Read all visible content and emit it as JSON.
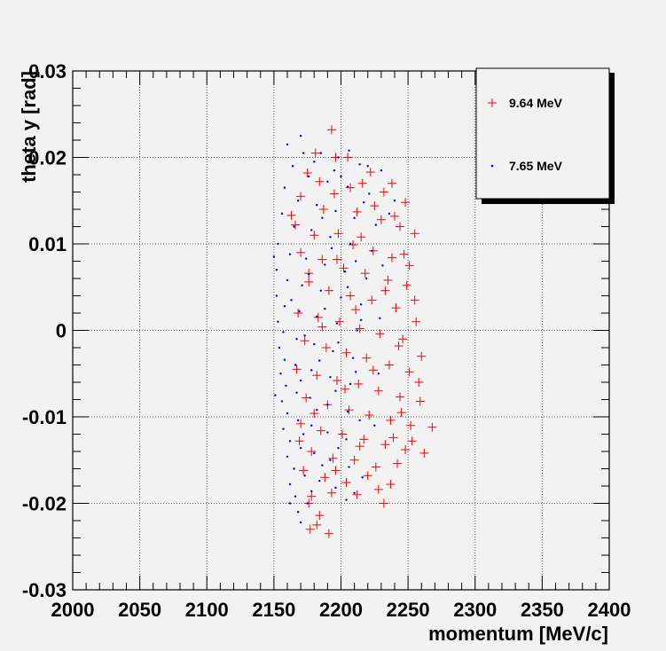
{
  "chart_data": {
    "type": "scatter",
    "title": "",
    "xlabel": "momentum [MeV/c]",
    "ylabel": "theta y [rad]",
    "xlim": [
      2000,
      2400
    ],
    "ylim": [
      -0.03,
      0.03
    ],
    "x_ticks": [
      "2000",
      "2050",
      "2100",
      "2150",
      "2200",
      "2250",
      "2300",
      "2350",
      "2400"
    ],
    "y_ticks": [
      "-0.03",
      "-0.02",
      "-0.01",
      "0",
      "0.01",
      "0.02",
      "0.03"
    ],
    "grid": true,
    "legend_position": "top-right",
    "series": [
      {
        "name": "9.64 MeV",
        "marker": "plus",
        "color": "#ff0000",
        "points": [
          [
            2193,
            0.0232
          ],
          [
            2181,
            0.0205
          ],
          [
            2205,
            0.02
          ],
          [
            2222,
            0.0183
          ],
          [
            2238,
            0.017
          ],
          [
            2175,
            0.0182
          ],
          [
            2216,
            0.017
          ],
          [
            2232,
            0.016
          ],
          [
            2248,
            0.0148
          ],
          [
            2170,
            0.0155
          ],
          [
            2195,
            0.0158
          ],
          [
            2187,
            0.014
          ],
          [
            2212,
            0.0137
          ],
          [
            2230,
            0.0128
          ],
          [
            2244,
            0.012
          ],
          [
            2255,
            0.0112
          ],
          [
            2166,
            0.0122
          ],
          [
            2180,
            0.011
          ],
          [
            2198,
            0.0112
          ],
          [
            2209,
            0.0099
          ],
          [
            2224,
            0.0092
          ],
          [
            2238,
            0.0084
          ],
          [
            2251,
            0.0075
          ],
          [
            2170,
            0.009
          ],
          [
            2186,
            0.0082
          ],
          [
            2202,
            0.0072
          ],
          [
            2218,
            0.0066
          ],
          [
            2235,
            0.0058
          ],
          [
            2249,
            0.0052
          ],
          [
            2176,
            0.0056
          ],
          [
            2191,
            0.0046
          ],
          [
            2207,
            0.004
          ],
          [
            2223,
            0.0035
          ],
          [
            2241,
            0.0026
          ],
          [
            2255,
            0.0035
          ],
          [
            2168,
            0.002
          ],
          [
            2183,
            0.0015
          ],
          [
            2199,
            0.001
          ],
          [
            2214,
            0.0002
          ],
          [
            2229,
            -0.0004
          ],
          [
            2246,
            -0.001
          ],
          [
            2173,
            -0.0012
          ],
          [
            2189,
            -0.002
          ],
          [
            2204,
            -0.0026
          ],
          [
            2219,
            -0.0032
          ],
          [
            2236,
            -0.004
          ],
          [
            2251,
            -0.0048
          ],
          [
            2167,
            -0.0045
          ],
          [
            2182,
            -0.0052
          ],
          [
            2197,
            -0.0058
          ],
          [
            2213,
            -0.0062
          ],
          [
            2228,
            -0.007
          ],
          [
            2244,
            -0.0077
          ],
          [
            2259,
            -0.0082
          ],
          [
            2174,
            -0.0078
          ],
          [
            2190,
            -0.0086
          ],
          [
            2206,
            -0.0092
          ],
          [
            2221,
            -0.0098
          ],
          [
            2237,
            -0.0104
          ],
          [
            2252,
            -0.011
          ],
          [
            2170,
            -0.0108
          ],
          [
            2185,
            -0.0116
          ],
          [
            2201,
            -0.012
          ],
          [
            2217,
            -0.0126
          ],
          [
            2233,
            -0.0132
          ],
          [
            2248,
            -0.0138
          ],
          [
            2262,
            -0.0142
          ],
          [
            2268,
            -0.0112
          ],
          [
            2178,
            -0.014
          ],
          [
            2194,
            -0.0148
          ],
          [
            2210,
            -0.015
          ],
          [
            2226,
            -0.0158
          ],
          [
            2242,
            -0.0154
          ],
          [
            2172,
            -0.0162
          ],
          [
            2188,
            -0.017
          ],
          [
            2204,
            -0.0176
          ],
          [
            2220,
            -0.0168
          ],
          [
            2237,
            -0.0178
          ],
          [
            2178,
            -0.0192
          ],
          [
            2193,
            -0.0188
          ],
          [
            2212,
            -0.019
          ],
          [
            2176,
            -0.02
          ],
          [
            2184,
            -0.0214
          ],
          [
            2232,
            -0.02
          ],
          [
            2182,
            -0.0225
          ],
          [
            2191,
            -0.0235
          ],
          [
            2177,
            -0.023
          ],
          [
            2163,
            0.0133
          ],
          [
            2247,
            0.0088
          ],
          [
            2256,
            0.001
          ],
          [
            2260,
            -0.003
          ],
          [
            2245,
            -0.0095
          ],
          [
            2258,
            -0.006
          ],
          [
            2196,
            0.02
          ],
          [
            2184,
            0.0172
          ],
          [
            2225,
            0.0144
          ],
          [
            2240,
            0.0132
          ],
          [
            2215,
            0.0108
          ],
          [
            2197,
            0.0082
          ],
          [
            2176,
            0.0066
          ],
          [
            2233,
            0.0046
          ],
          [
            2211,
            0.0024
          ],
          [
            2186,
            0.0004
          ],
          [
            2243,
            -0.0018
          ],
          [
            2224,
            -0.0046
          ],
          [
            2203,
            -0.0068
          ],
          [
            2180,
            -0.0096
          ],
          [
            2239,
            -0.0124
          ],
          [
            2214,
            -0.0134
          ],
          [
            2196,
            -0.0162
          ],
          [
            2228,
            -0.0184
          ],
          [
            2169,
            -0.0128
          ],
          [
            2253,
            -0.0128
          ],
          [
            2207,
            0.0165
          ]
        ]
      },
      {
        "name": "7.65 MeV",
        "marker": "dot",
        "color": "#0000ff",
        "points": [
          [
            2170,
            0.0225
          ],
          [
            2160,
            0.0215
          ],
          [
            2185,
            0.0205
          ],
          [
            2198,
            0.02
          ],
          [
            2214,
            0.0192
          ],
          [
            2230,
            0.0185
          ],
          [
            2164,
            0.019
          ],
          [
            2176,
            0.0178
          ],
          [
            2190,
            0.0172
          ],
          [
            2205,
            0.0166
          ],
          [
            2221,
            0.0158
          ],
          [
            2240,
            0.015
          ],
          [
            2158,
            0.0165
          ],
          [
            2168,
            0.015
          ],
          [
            2182,
            0.0145
          ],
          [
            2196,
            0.0138
          ],
          [
            2210,
            0.013
          ],
          [
            2226,
            0.0122
          ],
          [
            2156,
            0.0135
          ],
          [
            2165,
            0.012
          ],
          [
            2178,
            0.0116
          ],
          [
            2192,
            0.0108
          ],
          [
            2207,
            0.01
          ],
          [
            2223,
            0.0092
          ],
          [
            2153,
            0.01
          ],
          [
            2162,
            0.0088
          ],
          [
            2174,
            0.0083
          ],
          [
            2188,
            0.0076
          ],
          [
            2203,
            0.0068
          ],
          [
            2219,
            0.006
          ],
          [
            2152,
            0.007
          ],
          [
            2160,
            0.0058
          ],
          [
            2171,
            0.0052
          ],
          [
            2185,
            0.0046
          ],
          [
            2200,
            0.0038
          ],
          [
            2215,
            0.003
          ],
          [
            2152,
            0.004
          ],
          [
            2158,
            0.0028
          ],
          [
            2169,
            0.0022
          ],
          [
            2182,
            0.0016
          ],
          [
            2197,
            0.0008
          ],
          [
            2212,
            0.0
          ],
          [
            2153,
            0.001
          ],
          [
            2157,
            -0.0002
          ],
          [
            2167,
            -0.001
          ],
          [
            2180,
            -0.0016
          ],
          [
            2194,
            -0.0024
          ],
          [
            2209,
            -0.0032
          ],
          [
            2154,
            -0.002
          ],
          [
            2158,
            -0.0034
          ],
          [
            2166,
            -0.004
          ],
          [
            2178,
            -0.0046
          ],
          [
            2192,
            -0.0054
          ],
          [
            2207,
            -0.0062
          ],
          [
            2155,
            -0.005
          ],
          [
            2159,
            -0.0064
          ],
          [
            2167,
            -0.0072
          ],
          [
            2177,
            -0.0078
          ],
          [
            2190,
            -0.0086
          ],
          [
            2205,
            -0.0094
          ],
          [
            2156,
            -0.0082
          ],
          [
            2160,
            -0.0096
          ],
          [
            2168,
            -0.0104
          ],
          [
            2178,
            -0.011
          ],
          [
            2190,
            -0.0118
          ],
          [
            2204,
            -0.0126
          ],
          [
            2157,
            -0.0114
          ],
          [
            2162,
            -0.0128
          ],
          [
            2170,
            -0.0136
          ],
          [
            2180,
            -0.0142
          ],
          [
            2192,
            -0.015
          ],
          [
            2206,
            -0.0158
          ],
          [
            2160,
            -0.0146
          ],
          [
            2165,
            -0.016
          ],
          [
            2173,
            -0.0168
          ],
          [
            2184,
            -0.0174
          ],
          [
            2196,
            -0.0182
          ],
          [
            2210,
            -0.0188
          ],
          [
            2162,
            -0.0178
          ],
          [
            2166,
            -0.0192
          ],
          [
            2175,
            -0.02
          ],
          [
            2168,
            -0.021
          ],
          [
            2162,
            -0.02
          ],
          [
            2170,
            -0.0222
          ],
          [
            2172,
            0.0205
          ],
          [
            2195,
            0.0185
          ],
          [
            2200,
            0.0178
          ],
          [
            2217,
            0.0148
          ],
          [
            2186,
            0.013
          ],
          [
            2193,
            0.0095
          ],
          [
            2211,
            0.008
          ],
          [
            2176,
            0.0065
          ],
          [
            2205,
            0.005
          ],
          [
            2163,
            0.0035
          ],
          [
            2188,
            0.0025
          ],
          [
            2215,
            0.0012
          ],
          [
            2173,
            -0.0006
          ],
          [
            2198,
            -0.0014
          ],
          [
            2184,
            -0.0035
          ],
          [
            2211,
            -0.0048
          ],
          [
            2170,
            -0.0058
          ],
          [
            2196,
            -0.007
          ],
          [
            2182,
            -0.0092
          ],
          [
            2214,
            -0.0104
          ],
          [
            2172,
            -0.012
          ],
          [
            2198,
            -0.0136
          ],
          [
            2186,
            -0.0156
          ],
          [
            2216,
            -0.017
          ],
          [
            2178,
            -0.0186
          ],
          [
            2204,
            -0.0196
          ],
          [
            2225,
            -0.011
          ],
          [
            2228,
            -0.005
          ],
          [
            2229,
            0.0014
          ],
          [
            2231,
            0.0075
          ],
          [
            2236,
            0.0135
          ],
          [
            2220,
            0.019
          ],
          [
            2206,
            0.0208
          ],
          [
            2180,
            0.0195
          ],
          [
            2150,
            0.0085
          ],
          [
            2151,
            -0.0075
          ]
        ]
      }
    ]
  }
}
